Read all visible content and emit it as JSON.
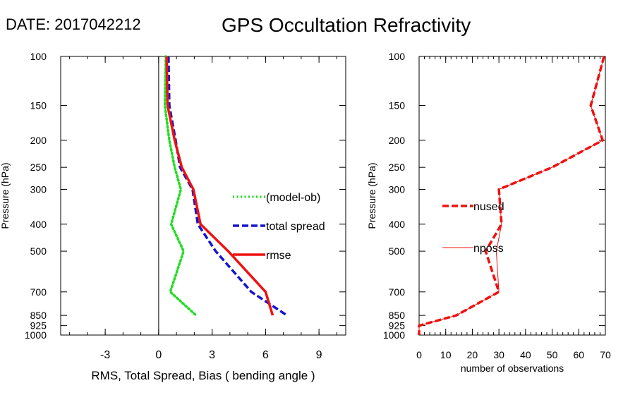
{
  "header": {
    "date_label": "DATE: 2017042212",
    "title": "GPS Occultation Refractivity"
  },
  "chart_data": [
    {
      "type": "line",
      "xlabel": "RMS, Total Spread, Bias ( bending angle )",
      "ylabel": "Pressure (hPa)",
      "xlim": [
        -5.5,
        10.5
      ],
      "ylim": [
        1000,
        100
      ],
      "yscale": "log",
      "x_ticks": [
        -3,
        0,
        3,
        6,
        9
      ],
      "y_ticks": [
        100,
        150,
        200,
        250,
        300,
        400,
        500,
        700,
        850,
        925,
        1000
      ],
      "zero_line": 0,
      "grid": false,
      "legend_position": "right",
      "series": [
        {
          "name": "(model-ob)",
          "color": "#22dd22",
          "style": "dotted",
          "points": [
            {
              "x": 0.4,
              "y": 100
            },
            {
              "x": 0.35,
              "y": 150
            },
            {
              "x": 0.6,
              "y": 200
            },
            {
              "x": 0.9,
              "y": 250
            },
            {
              "x": 1.25,
              "y": 300
            },
            {
              "x": 0.7,
              "y": 400
            },
            {
              "x": 1.4,
              "y": 500
            },
            {
              "x": 0.65,
              "y": 700
            },
            {
              "x": 2.1,
              "y": 850
            }
          ]
        },
        {
          "name": "total spread",
          "color": "#1515cc",
          "style": "dashed",
          "points": [
            {
              "x": 0.55,
              "y": 100
            },
            {
              "x": 0.6,
              "y": 150
            },
            {
              "x": 0.95,
              "y": 200
            },
            {
              "x": 1.2,
              "y": 250
            },
            {
              "x": 1.9,
              "y": 300
            },
            {
              "x": 2.2,
              "y": 400
            },
            {
              "x": 3.2,
              "y": 500
            },
            {
              "x": 5.2,
              "y": 700
            },
            {
              "x": 7.2,
              "y": 850
            }
          ]
        },
        {
          "name": "rmse",
          "color": "#ee1111",
          "style": "solid",
          "points": [
            {
              "x": 0.45,
              "y": 100
            },
            {
              "x": 0.5,
              "y": 150
            },
            {
              "x": 0.9,
              "y": 200
            },
            {
              "x": 1.3,
              "y": 250
            },
            {
              "x": 1.95,
              "y": 300
            },
            {
              "x": 2.35,
              "y": 400
            },
            {
              "x": 3.9,
              "y": 500
            },
            {
              "x": 6.0,
              "y": 700
            },
            {
              "x": 6.4,
              "y": 850
            }
          ]
        }
      ]
    },
    {
      "type": "line",
      "xlabel": "number of observations",
      "ylabel": "Pressure (hPa)",
      "xlim": [
        0,
        70
      ],
      "ylim": [
        1000,
        100
      ],
      "yscale": "log",
      "x_ticks": [
        0,
        10,
        20,
        30,
        40,
        50,
        60,
        70
      ],
      "y_ticks": [
        100,
        150,
        200,
        250,
        300,
        400,
        500,
        700,
        850,
        925,
        1000
      ],
      "grid": false,
      "legend_position": "left",
      "series": [
        {
          "name": "nused",
          "color": "#ee1111",
          "style": "dashed",
          "points": [
            {
              "x": 69.5,
              "y": 100
            },
            {
              "x": 64.5,
              "y": 150
            },
            {
              "x": 69,
              "y": 200
            },
            {
              "x": 50,
              "y": 250
            },
            {
              "x": 30,
              "y": 300
            },
            {
              "x": 31,
              "y": 400
            },
            {
              "x": 25,
              "y": 500
            },
            {
              "x": 30,
              "y": 700
            },
            {
              "x": 14,
              "y": 850
            },
            {
              "x": 0,
              "y": 925
            },
            {
              "x": 0,
              "y": 1000
            }
          ]
        },
        {
          "name": "nposs",
          "color": "#ee1111",
          "style": "thin",
          "points": [
            {
              "x": 69.5,
              "y": 100
            },
            {
              "x": 64.5,
              "y": 150
            },
            {
              "x": 69,
              "y": 200
            },
            {
              "x": 50,
              "y": 250
            },
            {
              "x": 30,
              "y": 300
            },
            {
              "x": 31,
              "y": 400
            },
            {
              "x": 29,
              "y": 500
            },
            {
              "x": 30,
              "y": 700
            },
            {
              "x": 14,
              "y": 850
            },
            {
              "x": 0,
              "y": 925
            },
            {
              "x": 0,
              "y": 1000
            }
          ]
        }
      ]
    }
  ]
}
